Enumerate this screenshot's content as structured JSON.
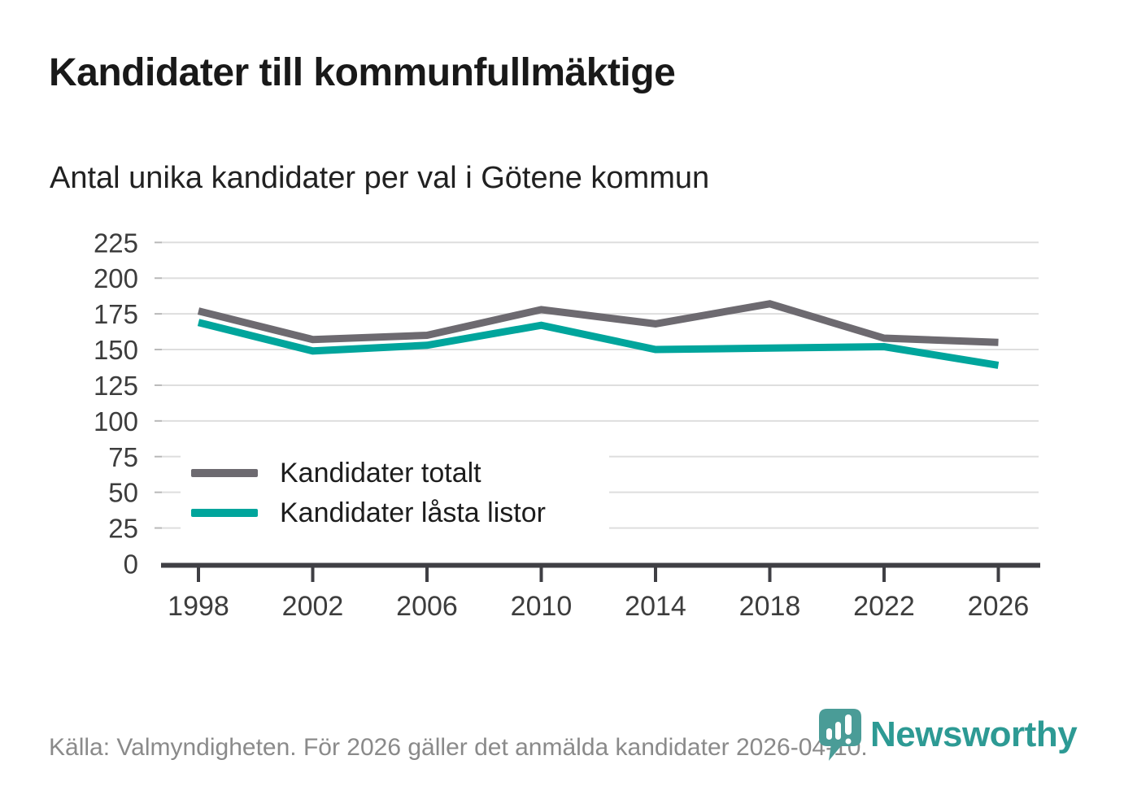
{
  "header": {
    "title": "Kandidater till kommunfullmäktige",
    "subtitle": "Antal unika kandidater per val i Götene kommun"
  },
  "chart_data": {
    "type": "line",
    "title": "Kandidater till kommunfullmäktige",
    "subtitle": "Antal unika kandidater per val i Götene kommun",
    "x": [
      1998,
      2002,
      2006,
      2010,
      2014,
      2018,
      2022,
      2026
    ],
    "series": [
      {
        "name": "Kandidater totalt",
        "color": "#6d6a70",
        "values": [
          177,
          157,
          160,
          178,
          168,
          182,
          158,
          155
        ]
      },
      {
        "name": "Kandidater låsta listor",
        "color": "#00a59c",
        "values": [
          169,
          149,
          153,
          167,
          150,
          151,
          152,
          139
        ]
      }
    ],
    "xlabel": "",
    "ylabel": "",
    "ylim": [
      0,
      225
    ],
    "yticks": [
      0,
      25,
      50,
      75,
      100,
      125,
      150,
      175,
      200,
      225
    ],
    "grid": true,
    "legend_position": "inside-bottom-left",
    "colors": {
      "grid": "#dedede",
      "axis": "#3f3f44",
      "tick_label": "#3d3d3d",
      "minor_tick": "#b9b9b9"
    }
  },
  "footer": {
    "source": "Källa: Valmyndigheten. För 2026 gäller det anmälda kandidater 2026-04-10.",
    "brand": "Newsworthy"
  }
}
